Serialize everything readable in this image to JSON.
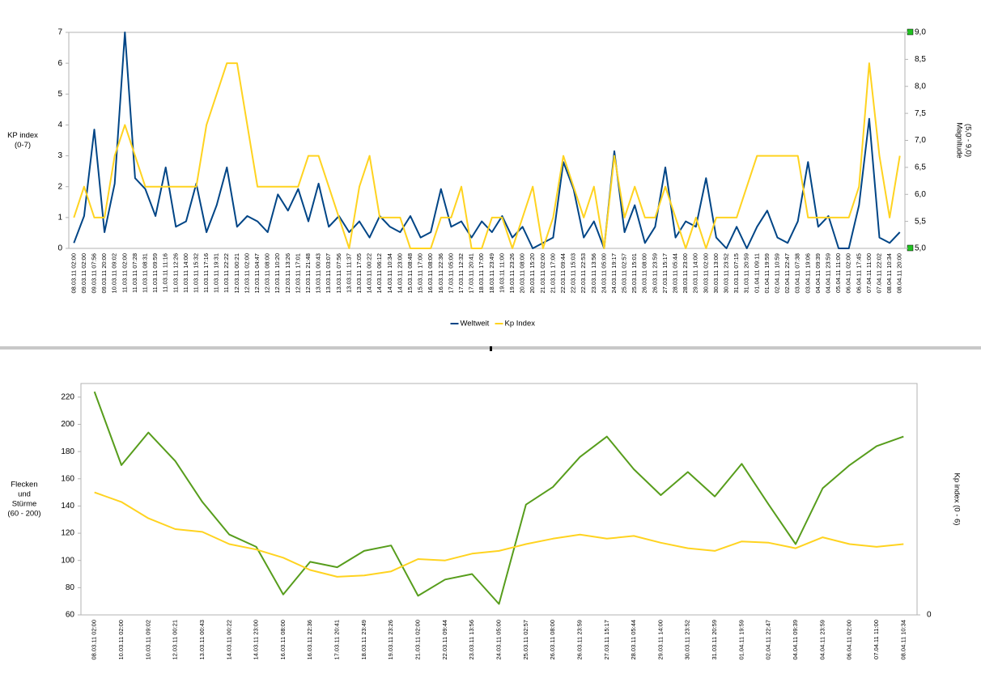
{
  "chart_data": [
    {
      "type": "line",
      "y_label": [
        "KP index",
        "(0-7)"
      ],
      "y2_label": [
        "Magnitude",
        "(5,0 - 9,0)"
      ],
      "categories": [
        "08.03.11 02:00",
        "09.03.11 02:00",
        "09.03.11 07:56",
        "09.03.11 20:00",
        "10.03.11 09:02",
        "11.03.11 02:00",
        "11.03.11 07:28",
        "11.03.11 08:31",
        "11.03.11 09:59",
        "11.03.11 11:16",
        "11.03.11 12:26",
        "11.03.11 14:00",
        "11.03.11 15:32",
        "11.03.11 17:16",
        "11.03.11 19:31",
        "11.03.11 22:22",
        "12.03.11 00:21",
        "12.03.11 02:00",
        "12.03.11 04:47",
        "12.03.11 08:00",
        "12.03.11 10:20",
        "12.03.11 13:26",
        "12.03.11 17:01",
        "12.03.11 21:48",
        "13.03.11 00:43",
        "13.03.11 03:07",
        "13.03.11 07:56",
        "13.03.11 11:37",
        "13.03.11 17:05",
        "14.03.11 00:22",
        "14.03.11 06:12",
        "14.03.11 10:34",
        "14.03.11 23:00",
        "15.03.11 08:48",
        "15.03.11 17:00",
        "16.03.11 08:00",
        "16.03.11 22:36",
        "17.03.11 05:00",
        "17.03.11 12:32",
        "17.03.11 20:41",
        "18.03.11 17:00",
        "18.03.11 23:49",
        "19.03.11 11:00",
        "19.03.11 23:26",
        "20.03.11 08:00",
        "20.03.11 15:20",
        "21.03.11 02:00",
        "21.03.11 17:00",
        "22.03.11 09:44",
        "22.03.11 15:03",
        "22.03.11 22:53",
        "23.03.11 13:56",
        "24.03.11 05:00",
        "24.03.11 19:17",
        "25.03.11 02:57",
        "25.03.11 15:01",
        "26.03.11 08:00",
        "26.03.11 23:59",
        "27.03.11 15:17",
        "28.03.11 05:44",
        "28.03.11 23:00",
        "29.03.11 14:00",
        "30.03.11 02:00",
        "30.03.11 13:00",
        "30.03.11 23:52",
        "31.03.11 07:15",
        "31.03.11 20:59",
        "01.04.11 09:11",
        "01.04.11 19:59",
        "02.04.11 10:59",
        "02.04.11 22:47",
        "03.04.11 07:38",
        "03.04.11 19:06",
        "04.04.11 09:39",
        "04.04.11 23:59",
        "05.04.11 11:00",
        "06.04.11 02:00",
        "06.04.11 17:45",
        "07.04.11 11:00",
        "07.04.11 22:02",
        "08.04.11 10:34",
        "08.04.11 20:00"
      ],
      "series": [
        {
          "name": "Weltweit",
          "color": "#004586",
          "axis": "y2",
          "values": [
            5.1,
            5.6,
            7.2,
            5.3,
            6.2,
            9.0,
            6.3,
            6.1,
            5.6,
            6.5,
            5.4,
            5.5,
            6.2,
            5.3,
            5.8,
            6.5,
            5.4,
            5.6,
            5.5,
            5.3,
            6.0,
            5.7,
            6.1,
            5.5,
            6.2,
            5.4,
            5.6,
            5.3,
            5.5,
            5.2,
            5.6,
            5.4,
            5.3,
            5.6,
            5.2,
            5.3,
            6.1,
            5.4,
            5.5,
            5.2,
            5.5,
            5.3,
            5.6,
            5.2,
            5.4,
            5.0,
            5.1,
            5.2,
            6.6,
            6.1,
            5.2,
            5.5,
            5.0,
            6.8,
            5.3,
            5.8,
            5.1,
            5.4,
            6.5,
            5.2,
            5.5,
            5.4,
            6.3,
            5.2,
            5.0,
            5.4,
            5.0,
            5.4,
            5.7,
            5.2,
            5.1,
            5.5,
            6.6,
            5.4,
            5.6,
            5.0,
            5.0,
            5.8,
            7.4,
            5.2,
            5.1,
            5.3
          ]
        },
        {
          "name": "Kp Index",
          "color": "#ffd320",
          "values": [
            1,
            2,
            1,
            1,
            3,
            4,
            3,
            2,
            2,
            2,
            2,
            2,
            2,
            4,
            5,
            6,
            6,
            4,
            2,
            2,
            2,
            2,
            2,
            3,
            3,
            2,
            1,
            0,
            2,
            3,
            1,
            1,
            1,
            0,
            0,
            0,
            1,
            1,
            2,
            0,
            0,
            1,
            1,
            0,
            1,
            2,
            0,
            1,
            3,
            2,
            1,
            2,
            0,
            3,
            1,
            2,
            1,
            1,
            2,
            1,
            0,
            1,
            0,
            1,
            1,
            1,
            2,
            3,
            3,
            3,
            3,
            3,
            1,
            1,
            1,
            1,
            1,
            2,
            6,
            3,
            1,
            3
          ]
        }
      ],
      "ylim": [
        0,
        7
      ],
      "yticks": [
        0,
        1,
        2,
        3,
        4,
        5,
        6,
        7
      ],
      "y2lim": [
        5,
        9
      ],
      "y2ticks": [
        {
          "value": 5,
          "label": "5,0"
        },
        {
          "value": 5.5,
          "label": "5,5"
        },
        {
          "value": 6,
          "label": "6,0"
        },
        {
          "value": 6.5,
          "label": "6,5"
        },
        {
          "value": 7,
          "label": "7,0"
        },
        {
          "value": 7.5,
          "label": "7,5"
        },
        {
          "value": 8,
          "label": "8,0"
        },
        {
          "value": 8.5,
          "label": "8,5"
        },
        {
          "value": 9,
          "label": "9,0"
        }
      ],
      "legend": "bottom"
    },
    {
      "type": "line",
      "y_label": [
        "Flecken",
        "und",
        "Stürme",
        "(60 - 200)"
      ],
      "y2_label": [
        "Kp index  (0 - 6)"
      ],
      "categories": [
        "08.03.11 02:00",
        "10.03.11 02:00",
        "10.03.11 09:02",
        "12.03.11 00:21",
        "13.03.11 00:43",
        "14.03.11 00:22",
        "14.03.11 23:00",
        "16.03.11 08:00",
        "16.03.11 22:36",
        "17.03.11 20:41",
        "18.03.11 23:49",
        "19.03.11 23:26",
        "21.03.11 02:00",
        "22.03.11 09:44",
        "23.03.11 13:56",
        "24.03.11 05:00",
        "25.03.11 02:57",
        "26.03.11 08:00",
        "26.03.11 23:59",
        "27.03.11 15:17",
        "28.03.11 05:44",
        "29.03.11 14:00",
        "30.03.11 23:52",
        "31.03.11 20:59",
        "01.04.11 19:59",
        "02.04.11 22:47",
        "04.04.11 09:39",
        "04.04.11 23:59",
        "06.04.11 02:00",
        "07.04.11 11:00",
        "08.04.11 10:34"
      ],
      "series": [
        {
          "name": "Flecken",
          "color": "#579d1c",
          "values": [
            224,
            170,
            194,
            173,
            143,
            119,
            110,
            75,
            99,
            95,
            107,
            111,
            74,
            86,
            90,
            68,
            141,
            154,
            176,
            191,
            167,
            148,
            165,
            147,
            171,
            141,
            112,
            153,
            170,
            184,
            191
          ]
        },
        {
          "name": "Stürme",
          "color": "#ffd320",
          "values": [
            150,
            143,
            131,
            123,
            121,
            112,
            108,
            102,
            93,
            88,
            89,
            92,
            101,
            100,
            105,
            107,
            112,
            116,
            119,
            116,
            118,
            113,
            109,
            107,
            114,
            113,
            109,
            117,
            112,
            110,
            112
          ]
        }
      ],
      "ylim": [
        60,
        230
      ],
      "yticks": [
        60,
        80,
        100,
        120,
        140,
        160,
        180,
        200,
        220
      ],
      "y2lim": [
        0,
        6
      ],
      "y2ticks": [
        0
      ]
    }
  ]
}
